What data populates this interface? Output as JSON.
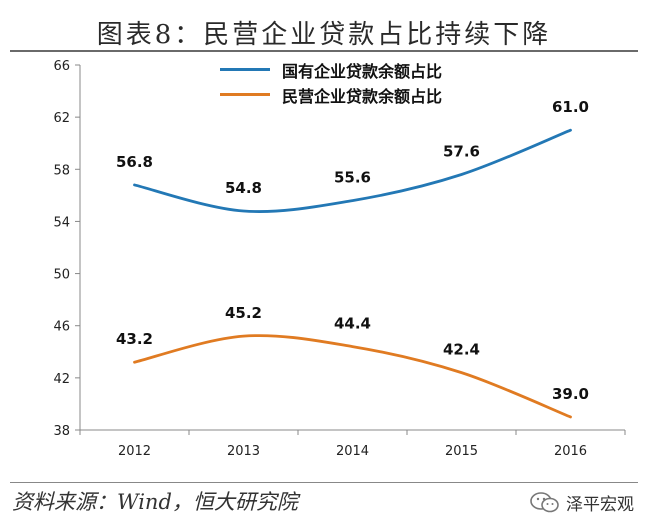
{
  "header": {
    "title": "图表8：民营企业贷款占比持续下降"
  },
  "footer": {
    "source": "资料来源：Wind，恒大研究院",
    "brand": "泽平宏观"
  },
  "chart_data": {
    "type": "line",
    "title": "图表8：民营企业贷款占比持续下降",
    "categories": [
      "2012",
      "2013",
      "2014",
      "2015",
      "2016"
    ],
    "series": [
      {
        "name": "国有企业贷款余额占比",
        "values": [
          56.8,
          54.8,
          55.6,
          57.6,
          61.0
        ],
        "color": "#2378b5"
      },
      {
        "name": "民营企业贷款余额占比",
        "values": [
          43.2,
          45.2,
          44.4,
          42.4,
          39.0
        ],
        "color": "#e07b22"
      }
    ],
    "ylim": [
      38,
      66
    ],
    "yticks": [
      "38",
      "42",
      "46",
      "50",
      "54",
      "58",
      "62",
      "66"
    ],
    "data_labels": [
      [
        "56.8",
        "54.8",
        "55.6",
        "57.6",
        "61.0"
      ],
      [
        "43.2",
        "45.2",
        "44.4",
        "42.4",
        "39.0"
      ]
    ],
    "legend_position": "top-center",
    "grid": false,
    "xlabel": "",
    "ylabel": ""
  }
}
